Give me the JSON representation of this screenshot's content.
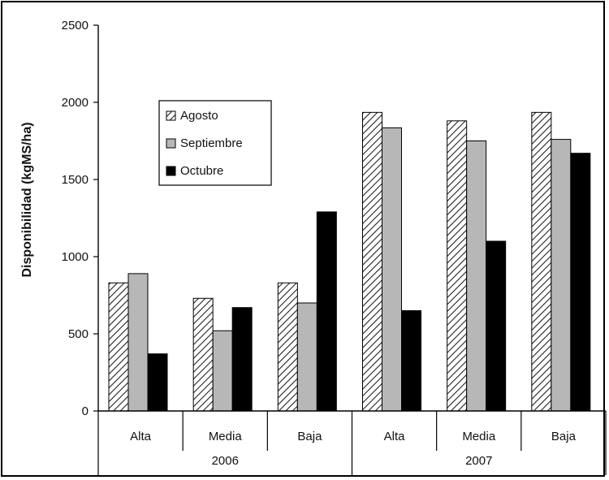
{
  "chart_data": {
    "type": "bar",
    "ylabel": "Disponibilidad (kgMS/ha)",
    "ylim": [
      0,
      2500
    ],
    "yticks": [
      "0",
      "500",
      "1000",
      "1500",
      "2000",
      "2500"
    ],
    "categories": [
      "Alta",
      "Media",
      "Baja",
      "Alta",
      "Media",
      "Baja"
    ],
    "groups": [
      "2006",
      "2007"
    ],
    "series": [
      {
        "name": "Agosto",
        "values": [
          830,
          730,
          830,
          1935,
          1880,
          1935
        ],
        "pattern": "hatch"
      },
      {
        "name": "Septiembre",
        "values": [
          890,
          520,
          700,
          1835,
          1750,
          1760
        ],
        "color": "#b7b7b7"
      },
      {
        "name": "Octubre",
        "values": [
          370,
          670,
          1290,
          650,
          1100,
          1670
        ],
        "color": "#000000"
      }
    ],
    "legend_position": "upper-left-inside",
    "grid": false
  }
}
